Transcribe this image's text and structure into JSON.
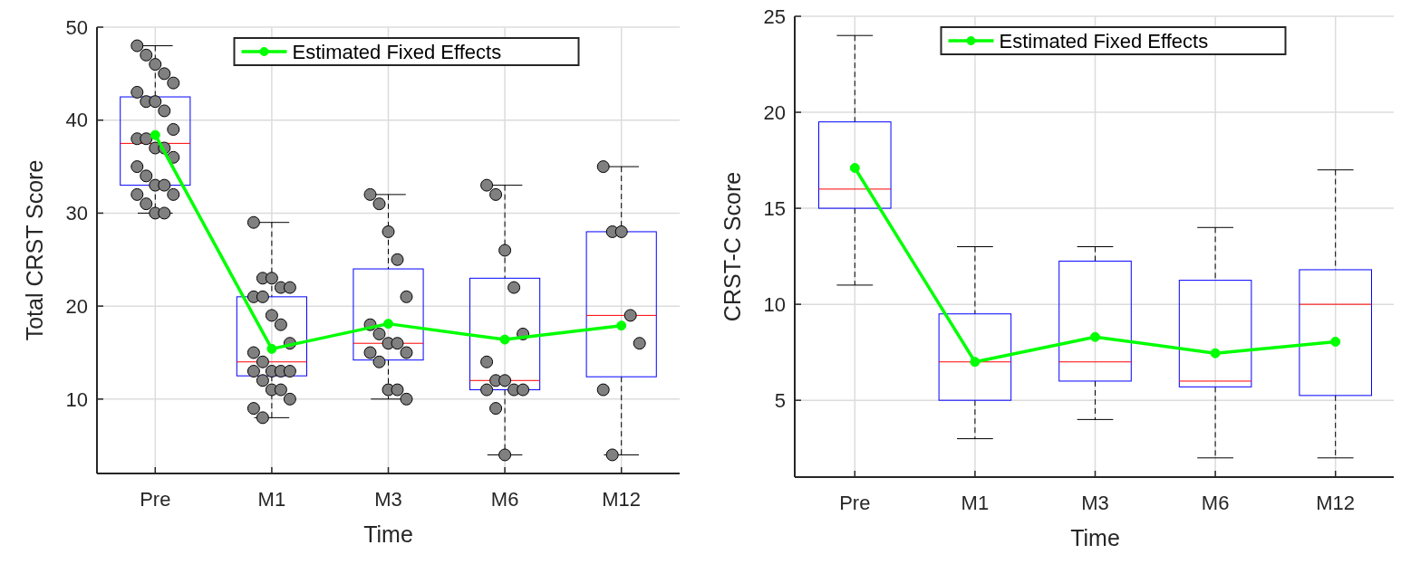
{
  "chart_data": [
    {
      "type": "box",
      "xlabel": "Time",
      "ylabel": "Total CRST Score",
      "categories": [
        "Pre",
        "M1",
        "M3",
        "M6",
        "M12"
      ],
      "ylim": [
        2,
        50
      ],
      "yticks": [
        10,
        20,
        30,
        40,
        50
      ],
      "grid": true,
      "legend": "top",
      "series": [
        {
          "type": "box",
          "color": "#0000ff",
          "boxes": [
            {
              "low": 30,
              "q1": 33,
              "median": 37.5,
              "q3": 42.5,
              "high": 48
            },
            {
              "low": 8,
              "q1": 12.5,
              "median": 14,
              "q3": 21,
              "high": 29
            },
            {
              "low": 10,
              "q1": 14.2,
              "median": 16,
              "q3": 24,
              "high": 32
            },
            {
              "low": 4,
              "q1": 11,
              "median": 12,
              "q3": 23,
              "high": 33
            },
            {
              "low": 4,
              "q1": 12.4,
              "median": 19,
              "q3": 28,
              "high": 35
            }
          ]
        },
        {
          "type": "scatter",
          "color": "#808080",
          "marker": "circle",
          "x": [
            "Pre",
            "Pre",
            "Pre",
            "Pre",
            "Pre",
            "Pre",
            "Pre",
            "Pre",
            "Pre",
            "Pre",
            "Pre",
            "Pre",
            "Pre",
            "Pre",
            "Pre",
            "Pre",
            "Pre",
            "Pre",
            "Pre",
            "Pre",
            "Pre",
            "Pre",
            "Pre",
            "Pre",
            "M1",
            "M1",
            "M1",
            "M1",
            "M1",
            "M1",
            "M1",
            "M1",
            "M1",
            "M1",
            "M1",
            "M1",
            "M1",
            "M1",
            "M1",
            "M1",
            "M1",
            "M1",
            "M1",
            "M1",
            "M1",
            "M1",
            "M3",
            "M3",
            "M3",
            "M3",
            "M3",
            "M3",
            "M3",
            "M3",
            "M3",
            "M3",
            "M3",
            "M3",
            "M3",
            "M3",
            "M3",
            "M6",
            "M6",
            "M6",
            "M6",
            "M6",
            "M6",
            "M6",
            "M6",
            "M6",
            "M6",
            "M6",
            "M6",
            "M6",
            "M12",
            "M12",
            "M12",
            "M12",
            "M12",
            "M12",
            "M12"
          ],
          "values": [
            48,
            47,
            46,
            45,
            44,
            43,
            42,
            42,
            41,
            39,
            38,
            38,
            37,
            37,
            36,
            35,
            34,
            33,
            33,
            32,
            32,
            31,
            30,
            30,
            29,
            23,
            23,
            22,
            22,
            21,
            21,
            19,
            18,
            16,
            15,
            14,
            13,
            13,
            13,
            13,
            12,
            11,
            11,
            10,
            9,
            8,
            32,
            31,
            28,
            25,
            21,
            18,
            17,
            16,
            16,
            15,
            15,
            14,
            11,
            11,
            10,
            33,
            32,
            26,
            22,
            17,
            14,
            12,
            12,
            11,
            11,
            11,
            9,
            4,
            35,
            28,
            28,
            19,
            16,
            11,
            4
          ]
        },
        {
          "type": "line",
          "name": "Estimated Fixed Effects",
          "color": "#00ff00",
          "marker": "circle",
          "values": [
            38.4,
            15.4,
            18.1,
            16.4,
            17.9
          ]
        }
      ]
    },
    {
      "type": "box",
      "xlabel": "Time",
      "ylabel": "CRST-C Score",
      "categories": [
        "Pre",
        "M1",
        "M3",
        "M6",
        "M12"
      ],
      "ylim": [
        1,
        25
      ],
      "yticks": [
        5,
        10,
        15,
        20,
        25
      ],
      "grid": true,
      "legend": "top",
      "series": [
        {
          "type": "box",
          "color": "#0000ff",
          "boxes": [
            {
              "low": 11,
              "q1": 15,
              "median": 16,
              "q3": 19.5,
              "high": 24
            },
            {
              "low": 3,
              "q1": 5,
              "median": 7,
              "q3": 9.5,
              "high": 13
            },
            {
              "low": 4,
              "q1": 6,
              "median": 7,
              "q3": 12.25,
              "high": 13
            },
            {
              "low": 2,
              "q1": 5.7,
              "median": 6,
              "q3": 11.25,
              "high": 14
            },
            {
              "low": 2,
              "q1": 5.25,
              "median": 10,
              "q3": 11.8,
              "high": 17
            }
          ]
        },
        {
          "type": "line",
          "name": "Estimated Fixed Effects",
          "color": "#00ff00",
          "marker": "circle",
          "values": [
            17.1,
            7,
            8.3,
            7.45,
            8.05
          ]
        }
      ]
    }
  ]
}
